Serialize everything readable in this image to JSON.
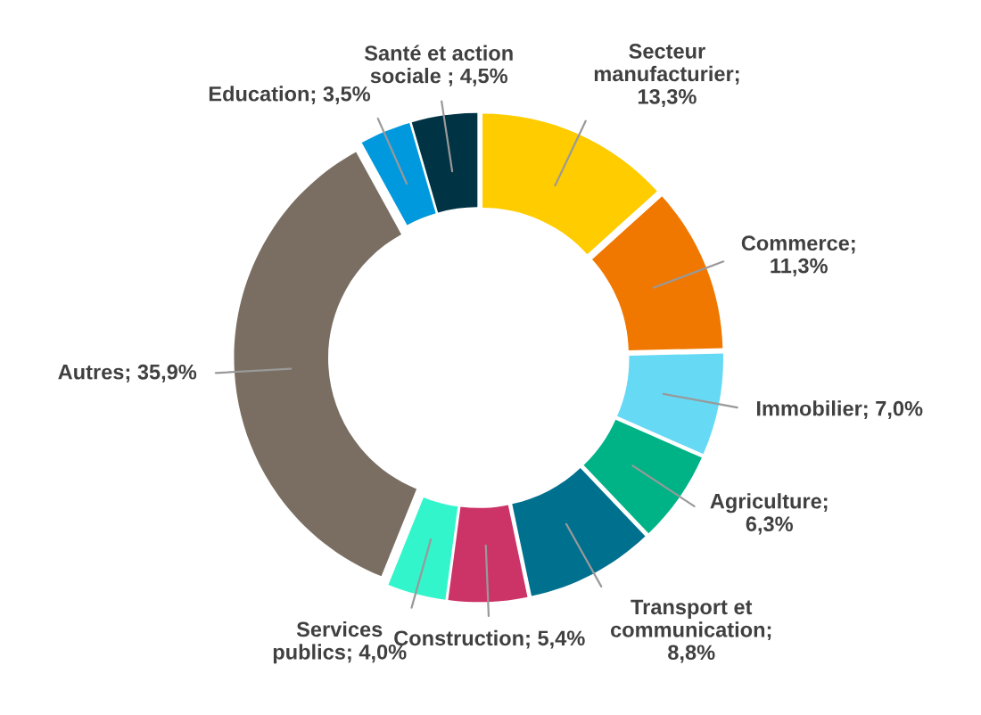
{
  "chart_data": {
    "type": "donut",
    "categories": [
      "Secteur\nmanufacturier",
      "Commerce",
      "Immobilier",
      "Agriculture",
      "Transport et\ncommunication",
      "Construction",
      "Services\npublics",
      "Autres",
      "Education",
      "Santé et action\nsociale"
    ],
    "values": [
      13.3,
      11.3,
      7.0,
      6.3,
      8.8,
      5.4,
      4.0,
      35.9,
      3.5,
      4.5
    ],
    "colors": [
      "#ffcc00",
      "#f07800",
      "#66d9f5",
      "#00b386",
      "#00708f",
      "#cc3366",
      "#33f5cc",
      "#7a6e62",
      "#0099dd",
      "#003344"
    ],
    "value_labels": [
      ";\n13,3%",
      ";\n11,3%",
      "; 7,0%",
      ";\n6,3%",
      ";\n8,8%",
      "; 5,4%",
      "; 4,0%",
      "; 35,9%",
      "; 3,5%",
      " ; 4,5%"
    ]
  }
}
